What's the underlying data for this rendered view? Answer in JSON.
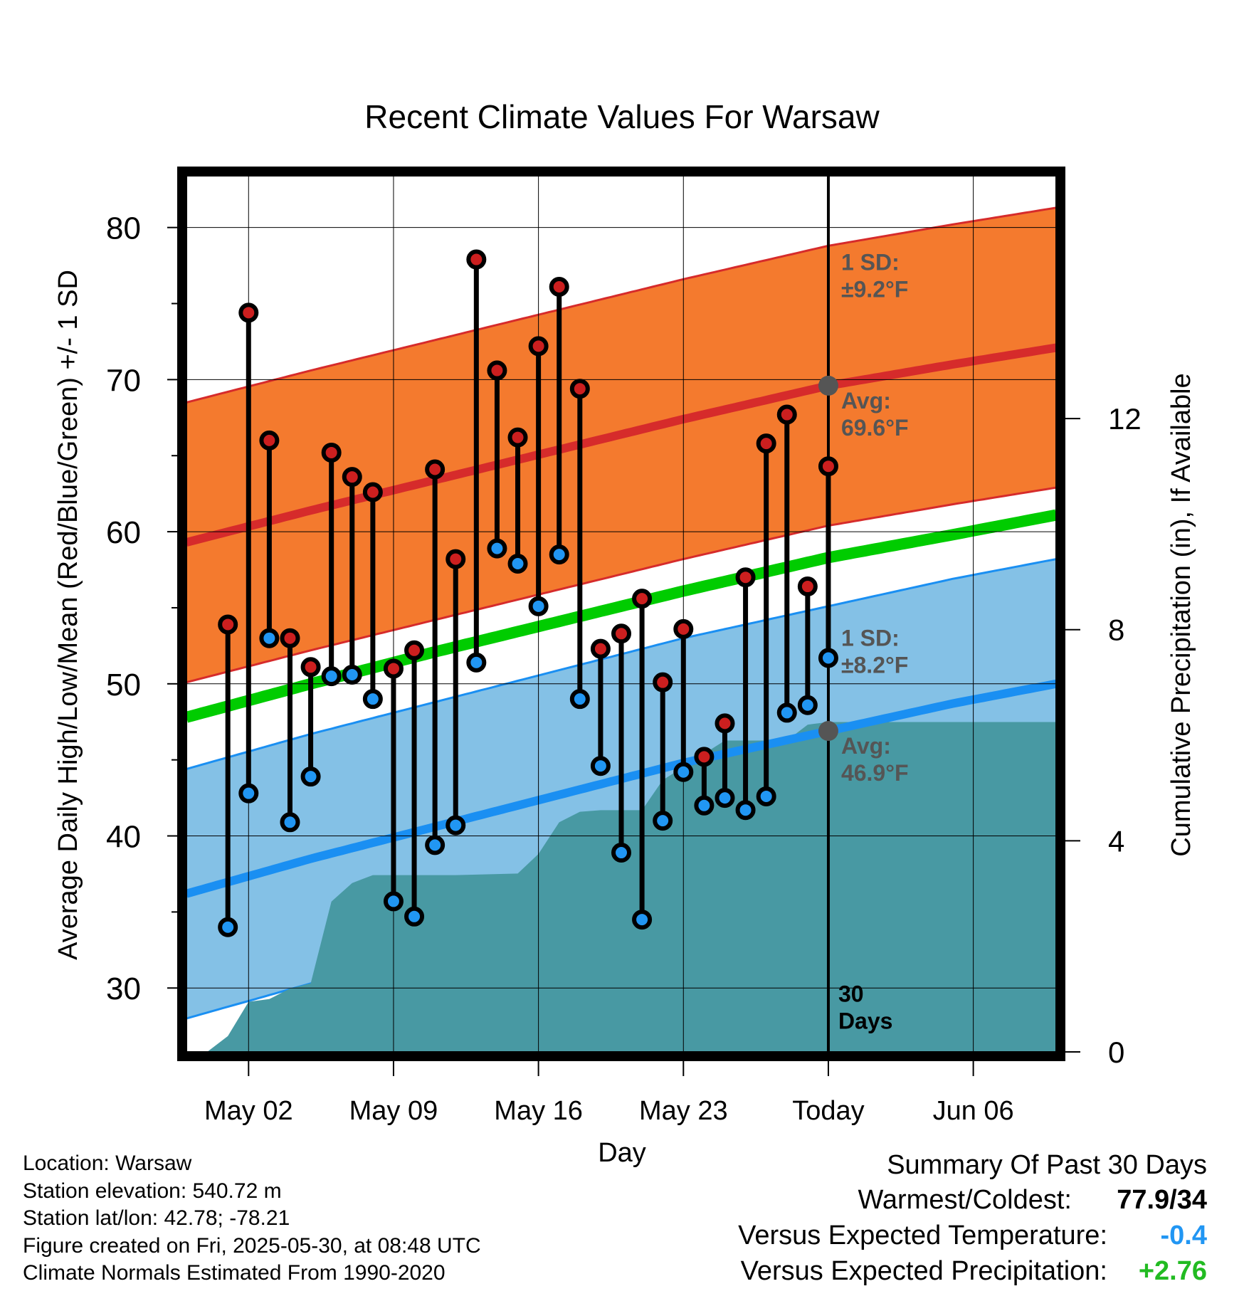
{
  "chart_data": {
    "type": "line",
    "title": "Recent Climate Values For Warsaw",
    "xlabel": "Day",
    "ylabel": "Average Daily High/Low/Mean (Red/Blue/Green) +/- 1 SD",
    "y2label": "Cumulative Precipitation (in), If Available",
    "ylim": [
      25.8,
      83.4
    ],
    "y2lim": [
      0,
      16.6
    ],
    "yticks": [
      30,
      40,
      50,
      60,
      70,
      80
    ],
    "y2ticks": [
      0,
      4,
      8,
      12
    ],
    "x_axis": {
      "start": "2025-04-29",
      "end": "2025-06-10",
      "today": "2025-05-30"
    },
    "xtick_labels": [
      {
        "date": "2025-05-02",
        "label": "May 02"
      },
      {
        "date": "2025-05-09",
        "label": "May 09"
      },
      {
        "date": "2025-05-16",
        "label": "May 16"
      },
      {
        "date": "2025-05-23",
        "label": "May 23"
      },
      {
        "date": "2025-05-30",
        "label": "Today"
      },
      {
        "date": "2025-06-06",
        "label": "Jun 06"
      }
    ],
    "observations": [
      {
        "date": "2025-05-01",
        "high": 53.9,
        "low": 34.0
      },
      {
        "date": "2025-05-02",
        "high": 74.4,
        "low": 42.8
      },
      {
        "date": "2025-05-03",
        "high": 66.0,
        "low": 53.0
      },
      {
        "date": "2025-05-04",
        "high": 53.0,
        "low": 40.9
      },
      {
        "date": "2025-05-05",
        "high": 51.1,
        "low": 43.9
      },
      {
        "date": "2025-05-06",
        "high": 65.2,
        "low": 50.5
      },
      {
        "date": "2025-05-07",
        "high": 63.6,
        "low": 50.6
      },
      {
        "date": "2025-05-08",
        "high": 62.6,
        "low": 49.0
      },
      {
        "date": "2025-05-09",
        "high": 51.0,
        "low": 35.7
      },
      {
        "date": "2025-05-10",
        "high": 52.2,
        "low": 34.7
      },
      {
        "date": "2025-05-11",
        "high": 64.1,
        "low": 39.4
      },
      {
        "date": "2025-05-12",
        "high": 58.2,
        "low": 40.7
      },
      {
        "date": "2025-05-13",
        "high": 77.9,
        "low": 51.4
      },
      {
        "date": "2025-05-14",
        "high": 70.6,
        "low": 58.9
      },
      {
        "date": "2025-05-15",
        "high": 66.2,
        "low": 57.9
      },
      {
        "date": "2025-05-16",
        "high": 72.2,
        "low": 55.1
      },
      {
        "date": "2025-05-17",
        "high": 76.1,
        "low": 58.5
      },
      {
        "date": "2025-05-18",
        "high": 69.4,
        "low": 49.0
      },
      {
        "date": "2025-05-19",
        "high": 52.3,
        "low": 44.6
      },
      {
        "date": "2025-05-20",
        "high": 53.3,
        "low": 38.9
      },
      {
        "date": "2025-05-21",
        "high": 55.6,
        "low": 34.5
      },
      {
        "date": "2025-05-22",
        "high": 50.1,
        "low": 41.0
      },
      {
        "date": "2025-05-23",
        "high": 53.6,
        "low": 44.2
      },
      {
        "date": "2025-05-24",
        "high": 45.2,
        "low": 42.0
      },
      {
        "date": "2025-05-25",
        "high": 47.4,
        "low": 42.5
      },
      {
        "date": "2025-05-26",
        "high": 57.0,
        "low": 41.7
      },
      {
        "date": "2025-05-27",
        "high": 65.8,
        "low": 42.6
      },
      {
        "date": "2025-05-28",
        "high": 67.7,
        "low": 48.1
      },
      {
        "date": "2025-05-29",
        "high": 56.4,
        "low": 48.6
      },
      {
        "date": "2025-05-30",
        "high": 64.3,
        "low": 51.7
      }
    ],
    "normals": {
      "dates": [
        "2025-04-29",
        "2025-05-05",
        "2025-05-11",
        "2025-05-17",
        "2025-05-23",
        "2025-05-30",
        "2025-06-05",
        "2025-06-10"
      ],
      "high_avg": [
        59.3,
        61.4,
        63.4,
        65.4,
        67.4,
        69.6,
        71.0,
        72.1
      ],
      "high_sd": 9.2,
      "low_avg": [
        36.2,
        38.5,
        40.6,
        42.7,
        44.8,
        46.9,
        48.7,
        50.0
      ],
      "low_sd": 8.2,
      "mean_avg": [
        47.8,
        50.0,
        52.1,
        54.1,
        56.1,
        58.3,
        59.8,
        61.1
      ]
    },
    "precip_cumulative": [
      {
        "date": "2025-04-30",
        "value": 0.0
      },
      {
        "date": "2025-05-01",
        "value": 0.3
      },
      {
        "date": "2025-05-02",
        "value": 0.95
      },
      {
        "date": "2025-05-03",
        "value": 1.0
      },
      {
        "date": "2025-05-04",
        "value": 1.2
      },
      {
        "date": "2025-05-05",
        "value": 1.3
      },
      {
        "date": "2025-05-06",
        "value": 2.85
      },
      {
        "date": "2025-05-07",
        "value": 3.2
      },
      {
        "date": "2025-05-08",
        "value": 3.35
      },
      {
        "date": "2025-05-12",
        "value": 3.35
      },
      {
        "date": "2025-05-15",
        "value": 3.38
      },
      {
        "date": "2025-05-16",
        "value": 3.75
      },
      {
        "date": "2025-05-17",
        "value": 4.35
      },
      {
        "date": "2025-05-18",
        "value": 4.55
      },
      {
        "date": "2025-05-19",
        "value": 4.58
      },
      {
        "date": "2025-05-21",
        "value": 4.58
      },
      {
        "date": "2025-05-22",
        "value": 5.15
      },
      {
        "date": "2025-05-23",
        "value": 5.4
      },
      {
        "date": "2025-05-24",
        "value": 5.65
      },
      {
        "date": "2025-05-25",
        "value": 5.9
      },
      {
        "date": "2025-05-28",
        "value": 5.9
      },
      {
        "date": "2025-05-29",
        "value": 6.2
      },
      {
        "date": "2025-05-30",
        "value": 6.25
      },
      {
        "date": "2025-06-10",
        "value": 6.25
      }
    ],
    "annotations": {
      "high_sd_label": [
        "1 SD:",
        "±9.2°F"
      ],
      "high_avg_label": [
        "Avg:",
        "69.6°F"
      ],
      "low_sd_label": [
        "1 SD:",
        "±8.2°F"
      ],
      "low_avg_label": [
        "Avg:",
        "46.9°F"
      ],
      "days_label": [
        "30",
        "Days"
      ]
    },
    "colors": {
      "high_band": "#f47a2e",
      "high_line": "#d62b2b",
      "low_band": "#84c1e6",
      "low_line": "#1a8ff2",
      "mean_line": "#00cc00",
      "precip_fill": "#4899a3",
      "high_marker": "#cc1f1f",
      "low_marker": "#2196f3",
      "annotation_text": "#555555"
    },
    "grid": true
  },
  "footer": {
    "location": "Location: Warsaw",
    "elevation": "Station elevation: 540.72 m",
    "latlon": "Station lat/lon: 42.78; -78.21",
    "created": "Figure created on Fri, 2025-05-30, at 08:48 UTC",
    "normals": "Climate Normals Estimated From 1990-2020"
  },
  "summary": {
    "title": "Summary Of Past 30 Days",
    "warmest_label": "Warmest/Coldest:",
    "warmest_value": "77.9/34",
    "temp_label": "Versus Expected Temperature:",
    "temp_value": "-0.4",
    "temp_color": "#2196f3",
    "precip_label": "Versus Expected Precipitation:",
    "precip_value": "+2.76",
    "precip_color": "#22bb22"
  }
}
